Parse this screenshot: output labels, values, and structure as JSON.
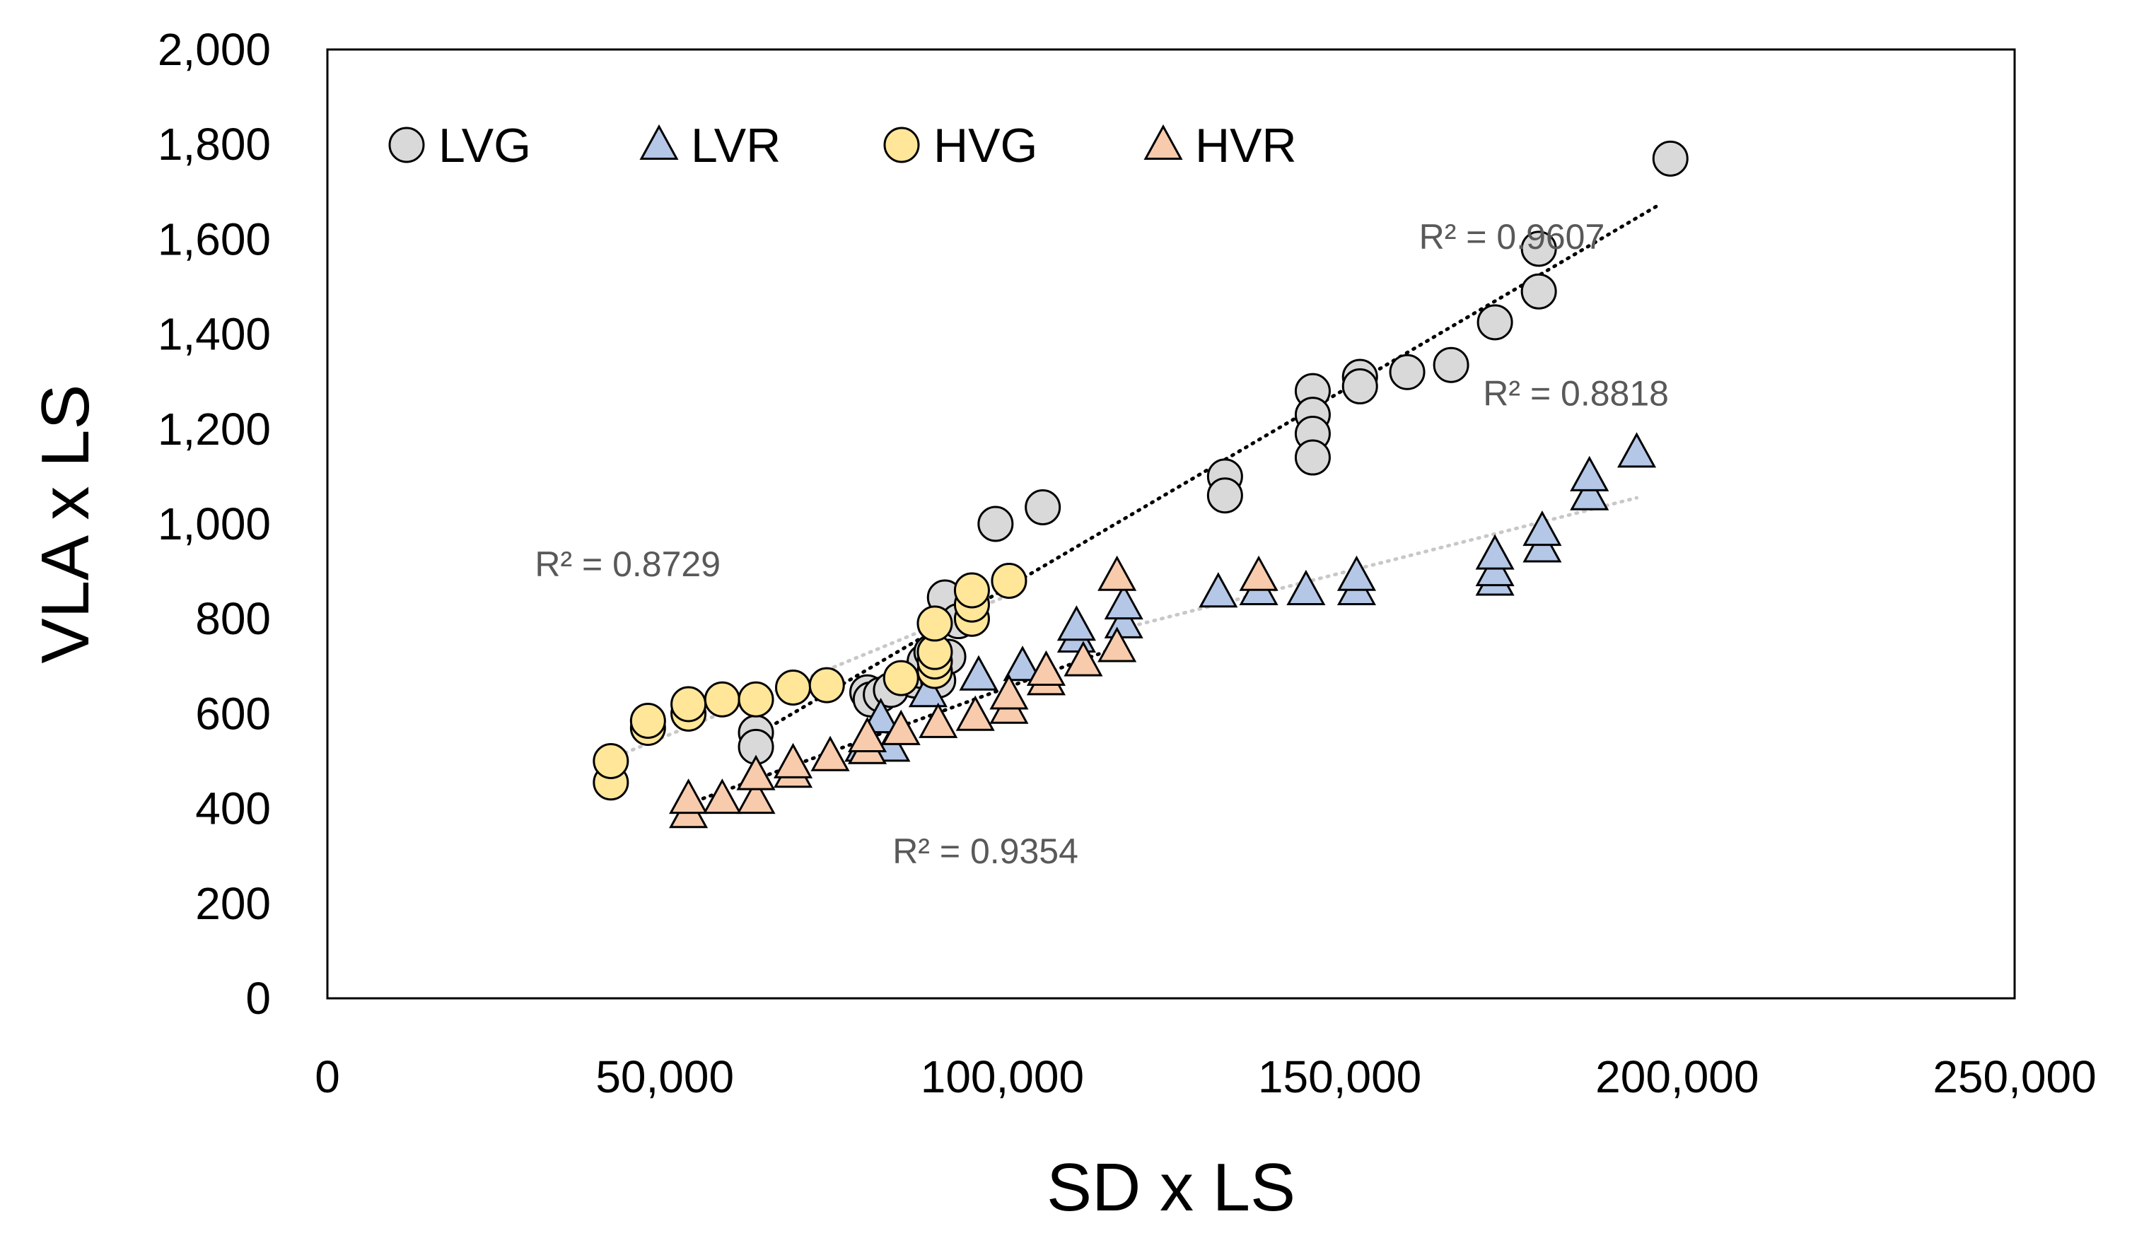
{
  "chart_data": {
    "type": "scatter",
    "title": "",
    "xlabel": "SD x LS",
    "ylabel": "VLA x LS",
    "xlim": [
      0,
      250000
    ],
    "ylim": [
      0,
      2000
    ],
    "x_ticks": [
      0,
      50000,
      100000,
      150000,
      200000,
      250000
    ],
    "x_tick_labels": [
      "0",
      "50,000",
      "100,000",
      "150,000",
      "200,000",
      "250,000"
    ],
    "y_ticks": [
      0,
      200,
      400,
      600,
      800,
      1000,
      1200,
      1400,
      1600,
      1800,
      2000
    ],
    "y_tick_labels": [
      "0",
      "200",
      "400",
      "600",
      "800",
      "1,000",
      "1,200",
      "1,400",
      "1,600",
      "1,800",
      "2,000"
    ],
    "grid": false,
    "legend_position": "top-left",
    "series": [
      {
        "name": "LVG",
        "marker": "circle",
        "color": "#d9d9d9",
        "points": [
          [
            63500,
            560
          ],
          [
            63500,
            530
          ],
          [
            80000,
            645
          ],
          [
            80500,
            630
          ],
          [
            82000,
            640
          ],
          [
            83500,
            650
          ],
          [
            87000,
            670
          ],
          [
            88000,
            690
          ],
          [
            88500,
            710
          ],
          [
            89500,
            730
          ],
          [
            91500,
            845
          ],
          [
            90500,
            670
          ],
          [
            92000,
            720
          ],
          [
            93500,
            795
          ],
          [
            99000,
            1000
          ],
          [
            106000,
            1035
          ],
          [
            133000,
            1100
          ],
          [
            133000,
            1060
          ],
          [
            146000,
            1280
          ],
          [
            146000,
            1230
          ],
          [
            146000,
            1190
          ],
          [
            146000,
            1140
          ],
          [
            153000,
            1310
          ],
          [
            153000,
            1290
          ],
          [
            160000,
            1320
          ],
          [
            166500,
            1335
          ],
          [
            173000,
            1425
          ],
          [
            179500,
            1490
          ],
          [
            179500,
            1580
          ],
          [
            199000,
            1770
          ]
        ]
      },
      {
        "name": "LVR",
        "marker": "triangle",
        "color": "#b4c7e7",
        "points": [
          [
            79500,
            530
          ],
          [
            83500,
            530
          ],
          [
            82000,
            590
          ],
          [
            89000,
            645
          ],
          [
            96500,
            680
          ],
          [
            103000,
            700
          ],
          [
            111000,
            760
          ],
          [
            111000,
            785
          ],
          [
            118000,
            790
          ],
          [
            118000,
            830
          ],
          [
            132000,
            855
          ],
          [
            138000,
            860
          ],
          [
            145000,
            860
          ],
          [
            152500,
            860
          ],
          [
            152500,
            890
          ],
          [
            173000,
            880
          ],
          [
            173000,
            900
          ],
          [
            173000,
            935
          ],
          [
            180000,
            950
          ],
          [
            180000,
            985
          ],
          [
            187000,
            1060
          ],
          [
            187000,
            1100
          ],
          [
            194000,
            1150
          ]
        ]
      },
      {
        "name": "HVG",
        "marker": "circle",
        "color": "#ffe699",
        "points": [
          [
            42000,
            455
          ],
          [
            42000,
            500
          ],
          [
            47500,
            570
          ],
          [
            47500,
            585
          ],
          [
            53500,
            600
          ],
          [
            53500,
            620
          ],
          [
            58500,
            630
          ],
          [
            63500,
            630
          ],
          [
            69000,
            655
          ],
          [
            74000,
            660
          ],
          [
            85000,
            675
          ],
          [
            90000,
            690
          ],
          [
            90000,
            710
          ],
          [
            90000,
            730
          ],
          [
            90000,
            790
          ],
          [
            95500,
            800
          ],
          [
            95500,
            830
          ],
          [
            95500,
            860
          ],
          [
            101000,
            880
          ]
        ]
      },
      {
        "name": "HVR",
        "marker": "triangle",
        "color": "#f8cbad",
        "points": [
          [
            53500,
            390
          ],
          [
            53500,
            420
          ],
          [
            58500,
            420
          ],
          [
            63500,
            420
          ],
          [
            63500,
            470
          ],
          [
            69000,
            475
          ],
          [
            69000,
            495
          ],
          [
            74500,
            510
          ],
          [
            80000,
            525
          ],
          [
            80000,
            550
          ],
          [
            85000,
            565
          ],
          [
            90500,
            580
          ],
          [
            96000,
            595
          ],
          [
            101000,
            610
          ],
          [
            101000,
            640
          ],
          [
            106500,
            670
          ],
          [
            106500,
            690
          ],
          [
            112000,
            710
          ],
          [
            117000,
            740
          ],
          [
            117000,
            890
          ],
          [
            138000,
            890
          ]
        ]
      }
    ],
    "trendlines": [
      {
        "series": "LVG",
        "from": [
          63500,
          555
        ],
        "to": [
          197000,
          1670
        ],
        "color": "#000000"
      },
      {
        "series": "HVG",
        "from": [
          42000,
          505
        ],
        "to": [
          101000,
          850
        ],
        "color": "#c8c8c8"
      },
      {
        "series": "HVR",
        "from": [
          53500,
          410
        ],
        "to": [
          118000,
          745
        ],
        "color": "#000000"
      },
      {
        "series": "LVR",
        "from": [
          118000,
          780
        ],
        "to": [
          194000,
          1055
        ],
        "color": "#c8c8c8"
      }
    ],
    "annotations": [
      {
        "text": "R² = 0.9607",
        "x": 175500,
        "y": 1580
      },
      {
        "text": "R² = 0.8818",
        "x": 185000,
        "y": 1250
      },
      {
        "text": "R² = 0.8729",
        "x": 44500,
        "y": 890
      },
      {
        "text": "R² = 0.9354",
        "x": 97500,
        "y": 285
      }
    ]
  }
}
